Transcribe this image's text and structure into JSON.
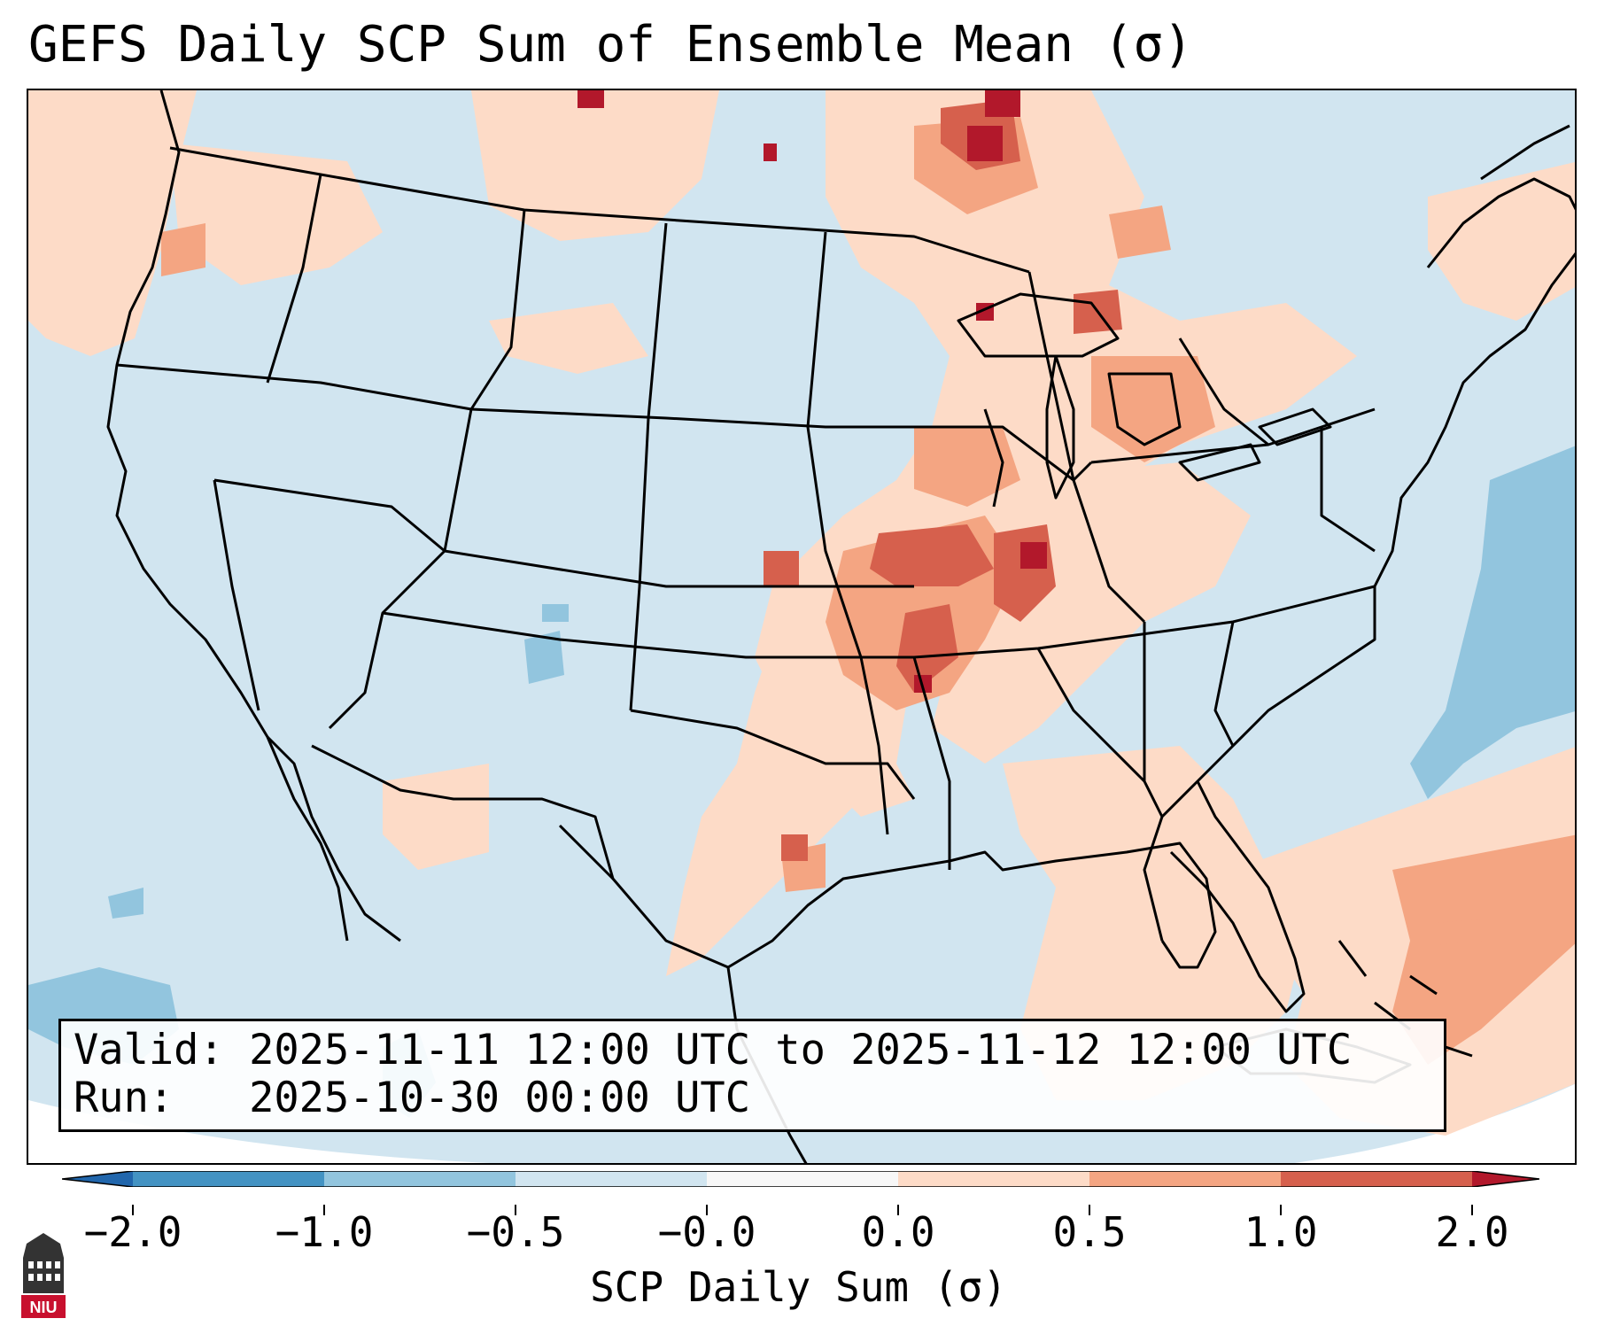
{
  "title": "GEFS Daily SCP Sum of Ensemble Mean (σ)",
  "info": {
    "valid_label": "Valid:",
    "valid_value": "2025-11-11 12:00 UTC to 2025-11-12 12:00 UTC",
    "run_label": "Run:",
    "run_value": "2025-10-30 00:00 UTC"
  },
  "colorbar": {
    "label": "SCP Daily Sum (σ)",
    "ticks": [
      "−2.0",
      "−1.0",
      "−0.5",
      "−0.0",
      "0.0",
      "0.5",
      "1.0",
      "2.0"
    ],
    "colors": {
      "below": "#2166ac",
      "neg2_neg1": "#4393c3",
      "neg1_neg05": "#92c5de",
      "neg05_0": "#d1e5f0",
      "zero_band": "#f7f7f7",
      "pos0_05": "#fddbc7",
      "pos05_1": "#f4a582",
      "pos1_2": "#d6604d",
      "above": "#b2182b"
    }
  },
  "map": {
    "background": "#d1e5f0",
    "outside_domain": "#ffffff",
    "highlighted_regions": [
      "Upper Midwest",
      "Iowa / Missouri / Illinois",
      "Great Lakes",
      "Southeast US",
      "Western Atlantic"
    ]
  },
  "logo": {
    "text": "NIU",
    "color": "#c8102e"
  }
}
